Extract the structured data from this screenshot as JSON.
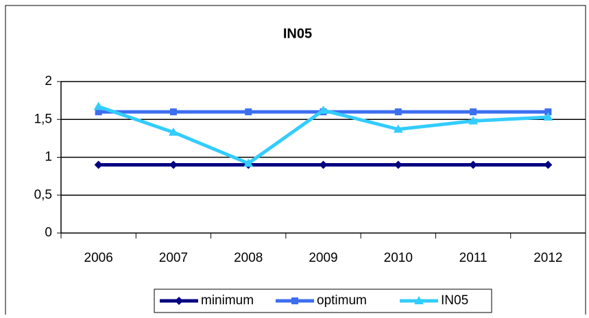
{
  "chart_data": {
    "type": "line",
    "title": "IN05",
    "categories": [
      "2006",
      "2007",
      "2008",
      "2009",
      "2010",
      "2011",
      "2012"
    ],
    "series": [
      {
        "name": "minimum",
        "color": "#000080",
        "marker": "diamond",
        "values": [
          0.9,
          0.9,
          0.9,
          0.9,
          0.9,
          0.9,
          0.9
        ]
      },
      {
        "name": "optimum",
        "color": "#3d6ef0",
        "marker": "square",
        "values": [
          1.6,
          1.6,
          1.6,
          1.6,
          1.6,
          1.6,
          1.6
        ]
      },
      {
        "name": "IN05",
        "color": "#33ccff",
        "marker": "triangle",
        "values": [
          1.67,
          1.33,
          0.92,
          1.62,
          1.37,
          1.48,
          1.53
        ]
      }
    ],
    "ylim": [
      0,
      2
    ],
    "yticks": [
      0,
      {
        "value": 0.5,
        "label": "0,5"
      },
      1,
      {
        "value": 1.5,
        "label": "1,5"
      },
      2
    ],
    "grid": true,
    "legend": "bottom"
  }
}
